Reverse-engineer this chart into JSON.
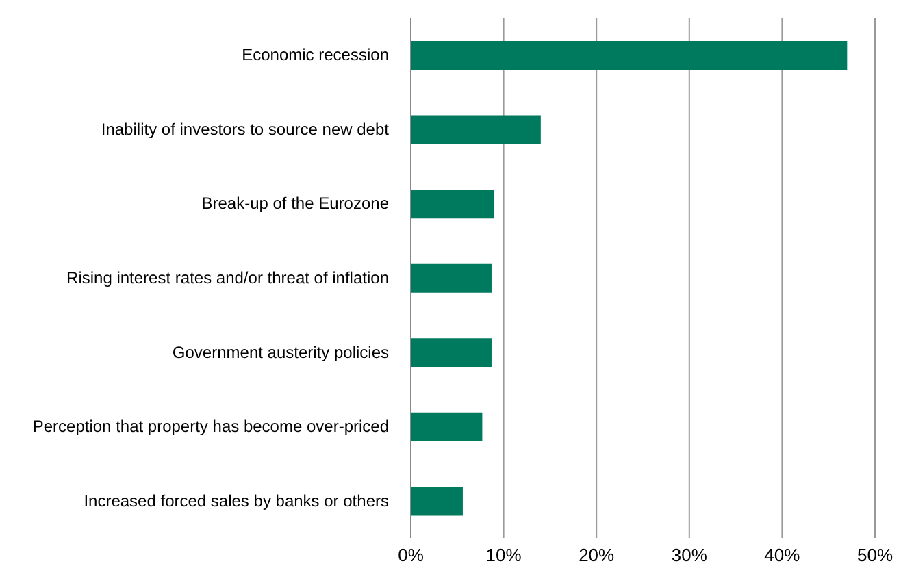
{
  "chart_data": {
    "type": "bar",
    "orientation": "horizontal",
    "categories": [
      "Economic recession",
      "Inability of investors to source new debt",
      "Break-up of the Eurozone",
      "Rising interest rates and/or threat of inflation",
      "Government austerity policies",
      "Perception that property has become over-priced",
      "Increased forced sales by banks or others"
    ],
    "values": [
      47,
      14,
      9,
      8.7,
      8.7,
      7.7,
      5.6
    ],
    "color": "#007a5e",
    "xlim": [
      0,
      50
    ],
    "xticks": [
      {
        "value": 0,
        "label": "0%"
      },
      {
        "value": 10,
        "label": "10%"
      },
      {
        "value": 20,
        "label": "20%"
      },
      {
        "value": 30,
        "label": "30%"
      },
      {
        "value": 40,
        "label": "40%"
      },
      {
        "value": 50,
        "label": "50%"
      }
    ],
    "grid": "x"
  }
}
